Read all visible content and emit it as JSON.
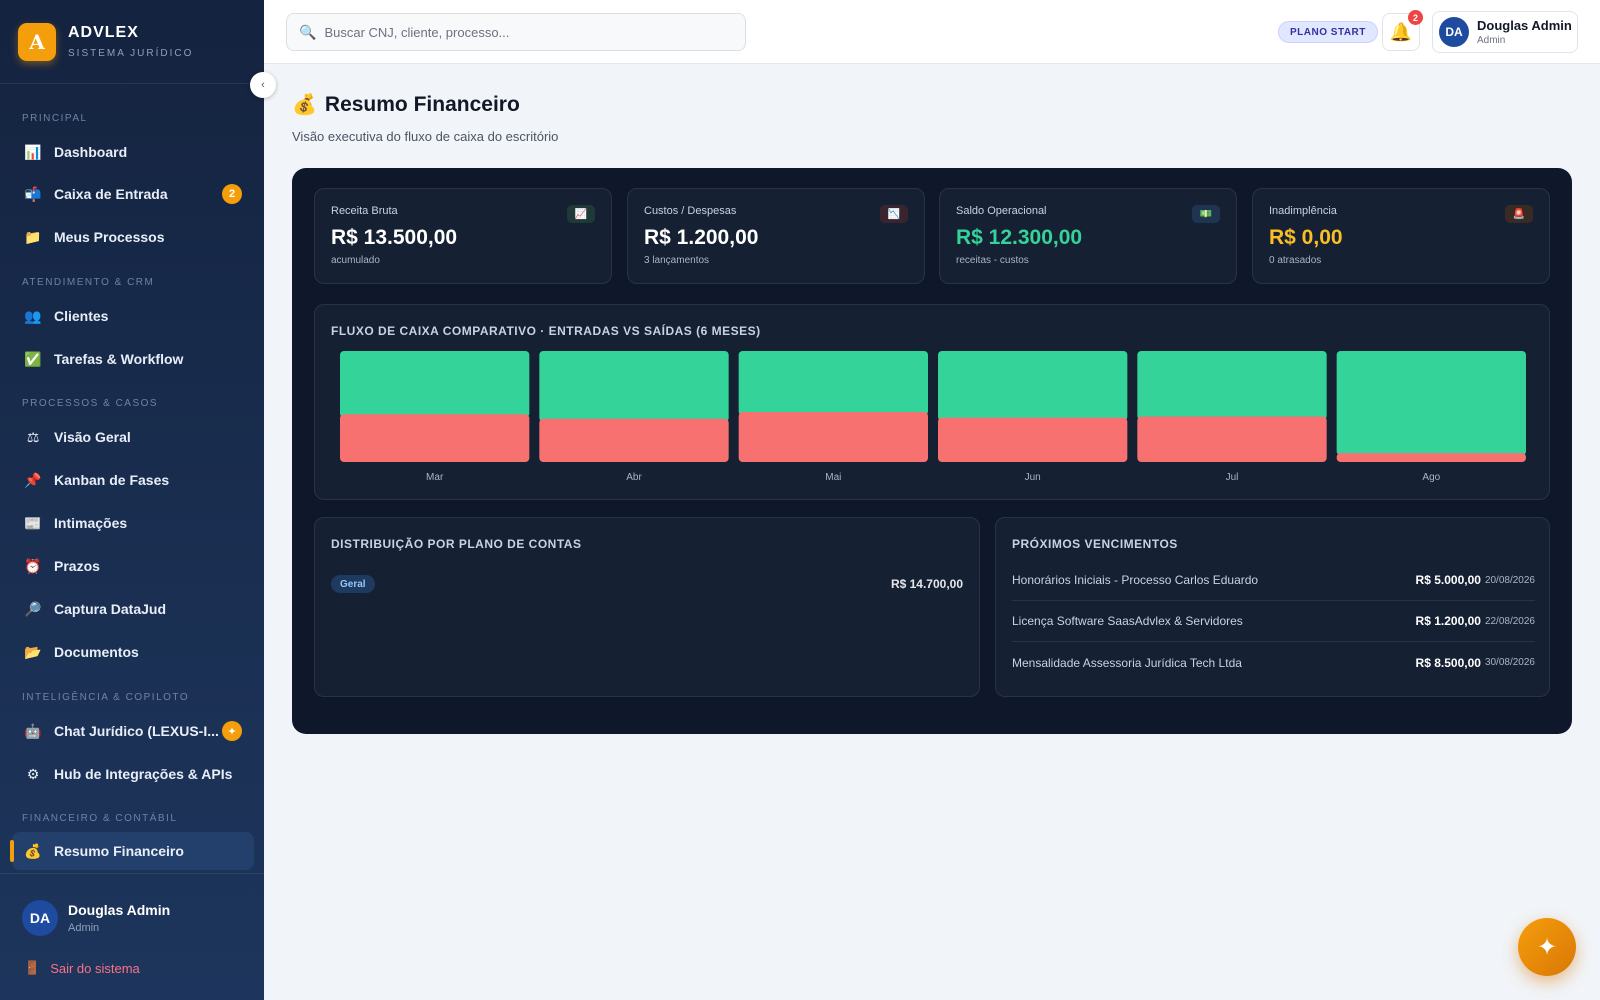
{
  "brand": {
    "logo_letter": "A",
    "name": "ADVLEX",
    "subtitle": "SISTEMA JURÍDICO"
  },
  "sidebar": {
    "collapse_icon": "chevron-left-icon",
    "sections": [
      {
        "label": "PRINCIPAL"
      },
      {
        "label": "ATENDIMENTO & CRM"
      },
      {
        "label": "PROCESSOS & CASOS"
      },
      {
        "label": "INTELIGÊNCIA & COPILOTO"
      },
      {
        "label": "FINANCEIRO & CONTÁBIL"
      }
    ],
    "items": [
      {
        "label": "Dashboard",
        "icon": "📊"
      },
      {
        "label": "Caixa de Entrada",
        "icon": "📬",
        "badge": "2"
      },
      {
        "label": "Meus Processos",
        "icon": "📁"
      },
      {
        "label": "Clientes",
        "icon": "👥"
      },
      {
        "label": "Tarefas & Workflow",
        "icon": "✅"
      },
      {
        "label": "Visão Geral",
        "icon": "⚖"
      },
      {
        "label": "Kanban de Fases",
        "icon": "📌"
      },
      {
        "label": "Intimações",
        "icon": "📰"
      },
      {
        "label": "Prazos",
        "icon": "⏰"
      },
      {
        "label": "Captura DataJud",
        "icon": "🔎"
      },
      {
        "label": "Documentos",
        "icon": "📂"
      },
      {
        "label": "Chat Jurídico (LEXUS-I...",
        "icon": "🤖",
        "badge": "✦"
      },
      {
        "label": "Hub de Integrações & APIs",
        "icon": "⚙"
      },
      {
        "label": "Resumo Financeiro",
        "icon": "💰",
        "active": true
      }
    ],
    "user": {
      "initials": "DA",
      "name": "Douglas Admin",
      "role": "Admin"
    },
    "logout": {
      "label": "Sair do sistema",
      "icon": "🚪"
    }
  },
  "topbar": {
    "search_placeholder": "Buscar CNJ, cliente, processo...",
    "search_icon": "🔍",
    "plan_badge": "PLANO START",
    "notifications_count": "2",
    "bell_icon": "🔔",
    "user": {
      "initials": "DA",
      "name": "Douglas Admin",
      "role": "Admin"
    }
  },
  "page": {
    "icon": "💰",
    "title": "Resumo Financeiro",
    "subtitle": "Visão executiva do fluxo de caixa do escritório"
  },
  "kpis": [
    {
      "label": "Receita Bruta",
      "value": "R$ 13.500,00",
      "note": "acumulado",
      "icon": "📈",
      "value_color": "#ffffff",
      "icon_bg": "#1f3a36"
    },
    {
      "label": "Custos / Despesas",
      "value": "R$ 1.200,00",
      "note": "3 lançamentos",
      "icon": "📉",
      "value_color": "#ffffff",
      "icon_bg": "#3a2430"
    },
    {
      "label": "Saldo Operacional",
      "value": "R$ 12.300,00",
      "note": "receitas - custos",
      "icon": "💵",
      "value_color": "#34d399",
      "icon_bg": "#1f3450"
    },
    {
      "label": "Inadimplência",
      "value": "R$ 0,00",
      "note": "0 atrasados",
      "icon": "🚨",
      "value_color": "#fbbf24",
      "icon_bg": "#3a2a24"
    }
  ],
  "chart_data": {
    "type": "bar",
    "title": "FLUXO DE CAIXA COMPARATIVO · ENTRADAS VS SAÍDAS (6 MESES)",
    "categories": [
      "Mar",
      "Abr",
      "Mai",
      "Jun",
      "Jul",
      "Ago"
    ],
    "series": [
      {
        "values": [
          60,
          64,
          58,
          63,
          62,
          94
        ],
        "color": "#34d399"
      },
      {
        "values": [
          43,
          39,
          45,
          40,
          41,
          8
        ],
        "color": "#f87171"
      }
    ],
    "ylim": [
      0,
      100
    ]
  },
  "distribution": {
    "title": "DISTRIBUIÇÃO POR PLANO DE CONTAS",
    "items": [
      {
        "tag": "Geral",
        "amount": "R$ 14.700,00"
      }
    ]
  },
  "due": {
    "title": "PRÓXIMOS VENCIMENTOS",
    "items": [
      {
        "description": "Honorários Iniciais - Processo Carlos Eduardo",
        "amount": "R$ 5.000,00",
        "date": "20/08/2026"
      },
      {
        "description": "Licença Software SaasAdvlex & Servidores",
        "amount": "R$ 1.200,00",
        "date": "22/08/2026"
      },
      {
        "description": "Mensalidade Assessoria Jurídica Tech Ltda",
        "amount": "R$ 8.500,00",
        "date": "30/08/2026"
      }
    ]
  },
  "fab": {
    "icon": "✦"
  }
}
